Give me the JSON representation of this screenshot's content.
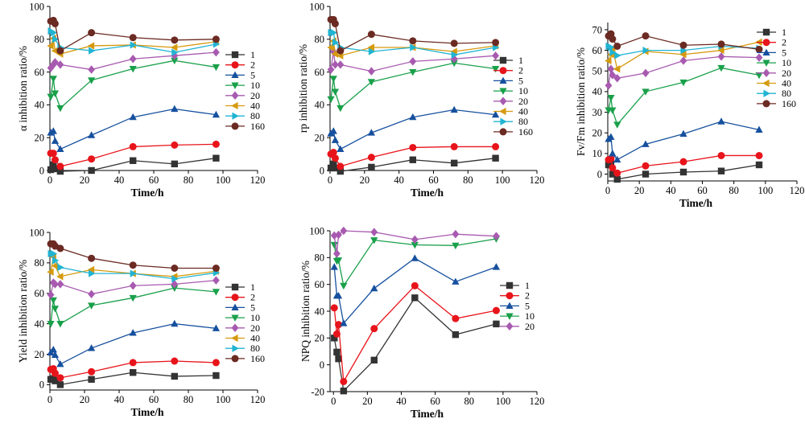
{
  "colors": {
    "1": "#333333",
    "2": "#e8141b",
    "5": "#16509e",
    "10": "#19a04a",
    "20": "#a85ab0",
    "40": "#d59a0e",
    "80": "#21b4d3",
    "160": "#6b2a22"
  },
  "markers": {
    "1": "square",
    "2": "circle",
    "5": "triangle-up",
    "10": "triangle-down",
    "20": "diamond",
    "40": "triangle-left",
    "80": "triangle-right",
    "160": "circle"
  },
  "chart_data": [
    {
      "type": "line",
      "xlabel": "Time/h",
      "ylabel": "α inhibition ratio/%",
      "xlim": [
        0,
        120
      ],
      "ylim": [
        0,
        100
      ],
      "xticks": [
        0,
        20,
        40,
        60,
        80,
        100,
        120
      ],
      "yticks": [
        0,
        20,
        40,
        60,
        80,
        100
      ],
      "legend_position": "right",
      "series": [
        {
          "name": "1",
          "x": [
            0.5,
            2,
            3,
            6,
            24,
            48,
            72,
            96
          ],
          "values": [
            0.5,
            3.5,
            1,
            -0.5,
            0,
            6,
            4,
            7.5
          ]
        },
        {
          "name": "2",
          "x": [
            0.5,
            2,
            3,
            6,
            24,
            48,
            72,
            96
          ],
          "values": [
            10.5,
            10.5,
            6.5,
            2.5,
            7,
            14.5,
            15.5,
            16
          ]
        },
        {
          "name": "5",
          "x": [
            0.5,
            2,
            3,
            6,
            24,
            48,
            72,
            96
          ],
          "values": [
            23,
            24,
            18,
            13,
            21.5,
            32.5,
            37.5,
            34
          ]
        },
        {
          "name": "10",
          "x": [
            0.5,
            2,
            3,
            6,
            24,
            48,
            72,
            96
          ],
          "values": [
            45,
            56,
            47,
            38,
            55,
            62,
            67,
            63
          ]
        },
        {
          "name": "20",
          "x": [
            0.5,
            2,
            3,
            6,
            24,
            48,
            72,
            96
          ],
          "values": [
            62.5,
            64.5,
            66,
            64.5,
            61.5,
            68,
            70,
            72
          ]
        },
        {
          "name": "40",
          "x": [
            0.5,
            2,
            3,
            6,
            24,
            48,
            72,
            96
          ],
          "values": [
            76,
            80.5,
            73,
            71,
            76,
            76.5,
            75,
            78.5
          ]
        },
        {
          "name": "80",
          "x": [
            0.5,
            2,
            3,
            6,
            24,
            48,
            72,
            96
          ],
          "values": [
            85,
            84,
            80,
            75,
            73,
            76.5,
            72,
            77
          ]
        },
        {
          "name": "160",
          "x": [
            0.5,
            2,
            3,
            6,
            24,
            48,
            72,
            96
          ],
          "values": [
            91,
            91.5,
            89.5,
            73,
            84,
            81,
            79.5,
            80
          ]
        }
      ]
    },
    {
      "type": "line",
      "xlabel": "Time/h",
      "ylabel": "rp inhibition ratio/%",
      "xlim": [
        0,
        120
      ],
      "ylim": [
        0,
        100
      ],
      "xticks": [
        0,
        20,
        40,
        60,
        80,
        100,
        120
      ],
      "yticks": [
        0,
        20,
        40,
        60,
        80,
        100
      ],
      "legend_position": "right",
      "series": [
        {
          "name": "1",
          "x": [
            0.5,
            2,
            3,
            6,
            24,
            48,
            72,
            96
          ],
          "values": [
            1.5,
            4,
            1.5,
            -0.5,
            2,
            6.5,
            4.5,
            7.5
          ]
        },
        {
          "name": "2",
          "x": [
            0.5,
            2,
            3,
            6,
            24,
            48,
            72,
            96
          ],
          "values": [
            10,
            11,
            7.5,
            2.5,
            8,
            14,
            14.5,
            14.5
          ]
        },
        {
          "name": "5",
          "x": [
            0.5,
            2,
            3,
            6,
            24,
            48,
            72,
            96
          ],
          "values": [
            22.5,
            24,
            18.5,
            13,
            23,
            32.5,
            37,
            34
          ]
        },
        {
          "name": "10",
          "x": [
            0.5,
            2,
            3,
            6,
            24,
            48,
            72,
            96
          ],
          "values": [
            43.5,
            56,
            48,
            38,
            54,
            60,
            65.5,
            62
          ]
        },
        {
          "name": "20",
          "x": [
            0.5,
            2,
            3,
            6,
            24,
            48,
            72,
            96
          ],
          "values": [
            61.5,
            72.5,
            64.5,
            64.5,
            60.5,
            66.5,
            68,
            70
          ]
        },
        {
          "name": "40",
          "x": [
            0.5,
            2,
            3,
            6,
            24,
            48,
            72,
            96
          ],
          "values": [
            75,
            79,
            71,
            70,
            75,
            75,
            72.5,
            76
          ]
        },
        {
          "name": "80",
          "x": [
            0.5,
            2,
            3,
            6,
            24,
            48,
            72,
            96
          ],
          "values": [
            84,
            84,
            78,
            75,
            72.5,
            75,
            70.5,
            75
          ]
        },
        {
          "name": "160",
          "x": [
            0.5,
            2,
            3,
            6,
            24,
            48,
            72,
            96
          ],
          "values": [
            92,
            92,
            89.5,
            73,
            83,
            79,
            77.5,
            78
          ]
        }
      ]
    },
    {
      "type": "line",
      "xlabel": "Time/h",
      "ylabel": "Fv/Fm inhibition ratio/%",
      "xlim": [
        0,
        120
      ],
      "ylim": [
        -3.3,
        73.5
      ],
      "xticks": [
        0,
        20,
        40,
        60,
        80,
        100,
        120
      ],
      "yticks": [
        0,
        10,
        20,
        30,
        40,
        50,
        60,
        70
      ],
      "legend_position": "right",
      "series": [
        {
          "name": "1",
          "x": [
            0.5,
            2,
            3,
            6,
            24,
            48,
            72,
            96
          ],
          "values": [
            4.5,
            5,
            0,
            -2.5,
            0,
            1,
            1.5,
            4.5
          ]
        },
        {
          "name": "2",
          "x": [
            0.5,
            2,
            3,
            6,
            24,
            48,
            72,
            96
          ],
          "values": [
            7,
            7.5,
            3,
            0.5,
            4,
            6,
            9,
            9
          ]
        },
        {
          "name": "5",
          "x": [
            0.5,
            2,
            3,
            6,
            24,
            48,
            72,
            96
          ],
          "values": [
            17,
            18,
            10,
            7,
            14.5,
            19.5,
            25.5,
            21.5
          ]
        },
        {
          "name": "10",
          "x": [
            0.5,
            2,
            3,
            6,
            24,
            48,
            72,
            96
          ],
          "values": [
            31,
            37,
            31,
            24,
            40,
            44.5,
            51.5,
            48
          ]
        },
        {
          "name": "20",
          "x": [
            0.5,
            2,
            3,
            6,
            24,
            48,
            72,
            96
          ],
          "values": [
            43,
            51,
            48,
            46.5,
            49,
            55,
            57,
            56.5
          ]
        },
        {
          "name": "40",
          "x": [
            0.5,
            2,
            3,
            6,
            24,
            48,
            72,
            96
          ],
          "values": [
            55,
            58,
            61,
            51,
            59.5,
            58,
            60,
            64
          ]
        },
        {
          "name": "80",
          "x": [
            0.5,
            2,
            3,
            6,
            24,
            48,
            72,
            96
          ],
          "values": [
            62,
            61.5,
            59,
            57.5,
            60,
            60,
            62,
            61
          ]
        },
        {
          "name": "160",
          "x": [
            0.5,
            2,
            3,
            6,
            24,
            48,
            72,
            96
          ],
          "values": [
            67,
            68,
            65.5,
            62,
            67,
            62.5,
            63,
            60.5
          ]
        }
      ]
    },
    {
      "type": "line",
      "xlabel": "Time/h",
      "ylabel": "Yield inhibition ratio/%",
      "xlim": [
        0,
        120
      ],
      "ylim": [
        -3.5,
        100
      ],
      "xticks": [
        0,
        20,
        40,
        60,
        80,
        100,
        120
      ],
      "yticks": [
        0,
        20,
        40,
        60,
        80,
        100
      ],
      "legend_position": "right",
      "series": [
        {
          "name": "1",
          "x": [
            0.5,
            2,
            3,
            6,
            24,
            48,
            72,
            96
          ],
          "values": [
            3.5,
            4,
            2.5,
            0,
            3.5,
            8,
            5.5,
            6
          ]
        },
        {
          "name": "2",
          "x": [
            0.5,
            2,
            3,
            6,
            24,
            48,
            72,
            96
          ],
          "values": [
            10,
            10.5,
            7.5,
            4.5,
            8.5,
            14.5,
            15.5,
            14.5
          ]
        },
        {
          "name": "5",
          "x": [
            0.5,
            2,
            3,
            6,
            24,
            48,
            72,
            96
          ],
          "values": [
            21,
            23,
            19.5,
            13.5,
            24,
            34,
            40,
            37
          ]
        },
        {
          "name": "10",
          "x": [
            0.5,
            2,
            3,
            6,
            24,
            48,
            72,
            96
          ],
          "values": [
            40,
            55.5,
            50,
            40,
            52,
            57,
            63.5,
            61
          ]
        },
        {
          "name": "20",
          "x": [
            0.5,
            2,
            3,
            6,
            24,
            48,
            72,
            96
          ],
          "values": [
            59,
            67,
            66,
            66,
            59.5,
            65,
            66,
            68.5
          ]
        },
        {
          "name": "40",
          "x": [
            0.5,
            2,
            3,
            6,
            24,
            48,
            72,
            96
          ],
          "values": [
            74,
            84,
            78,
            71,
            75.5,
            73,
            71,
            74.5
          ]
        },
        {
          "name": "80",
          "x": [
            0.5,
            2,
            3,
            6,
            24,
            48,
            72,
            96
          ],
          "values": [
            86,
            86,
            81.5,
            77,
            73,
            73,
            69.5,
            73.5
          ]
        },
        {
          "name": "160",
          "x": [
            0.5,
            2,
            3,
            6,
            24,
            48,
            72,
            96
          ],
          "values": [
            92.5,
            92.5,
            91,
            89.5,
            83,
            78.5,
            76.5,
            76.5
          ]
        }
      ]
    },
    {
      "type": "line",
      "xlabel": "Time/h",
      "ylabel": "NPQ inhibition ratio/%",
      "xlim": [
        -2,
        120
      ],
      "ylim": [
        -20,
        100
      ],
      "xticks": [
        0,
        20,
        40,
        60,
        80,
        100,
        120
      ],
      "yticks": [
        -20,
        0,
        20,
        40,
        60,
        80,
        100
      ],
      "legend_position": "right",
      "series": [
        {
          "name": "1",
          "x": [
            0.5,
            2,
            3,
            6,
            24,
            48,
            72,
            96
          ],
          "values": [
            20,
            9.5,
            4.5,
            -19.5,
            3.5,
            50,
            22.5,
            30.5
          ]
        },
        {
          "name": "2",
          "x": [
            0.5,
            2,
            3,
            6,
            24,
            48,
            72,
            96
          ],
          "values": [
            42.5,
            23,
            30,
            -12.5,
            27,
            59,
            34.5,
            40.5
          ]
        },
        {
          "name": "5",
          "x": [
            0.5,
            2,
            3,
            6,
            24,
            48,
            72,
            96
          ],
          "values": [
            73,
            51.5,
            51.5,
            31,
            57,
            79.5,
            62,
            73
          ]
        },
        {
          "name": "10",
          "x": [
            0.5,
            2,
            3,
            6,
            24,
            48,
            72,
            96
          ],
          "values": [
            89.5,
            77.5,
            78,
            59,
            93,
            89.5,
            89,
            94
          ]
        },
        {
          "name": "20",
          "x": [
            0.5,
            2,
            3,
            6,
            24,
            48,
            72,
            96
          ],
          "values": [
            96.5,
            83,
            97,
            100,
            99,
            93.5,
            97.5,
            96
          ]
        }
      ]
    }
  ]
}
